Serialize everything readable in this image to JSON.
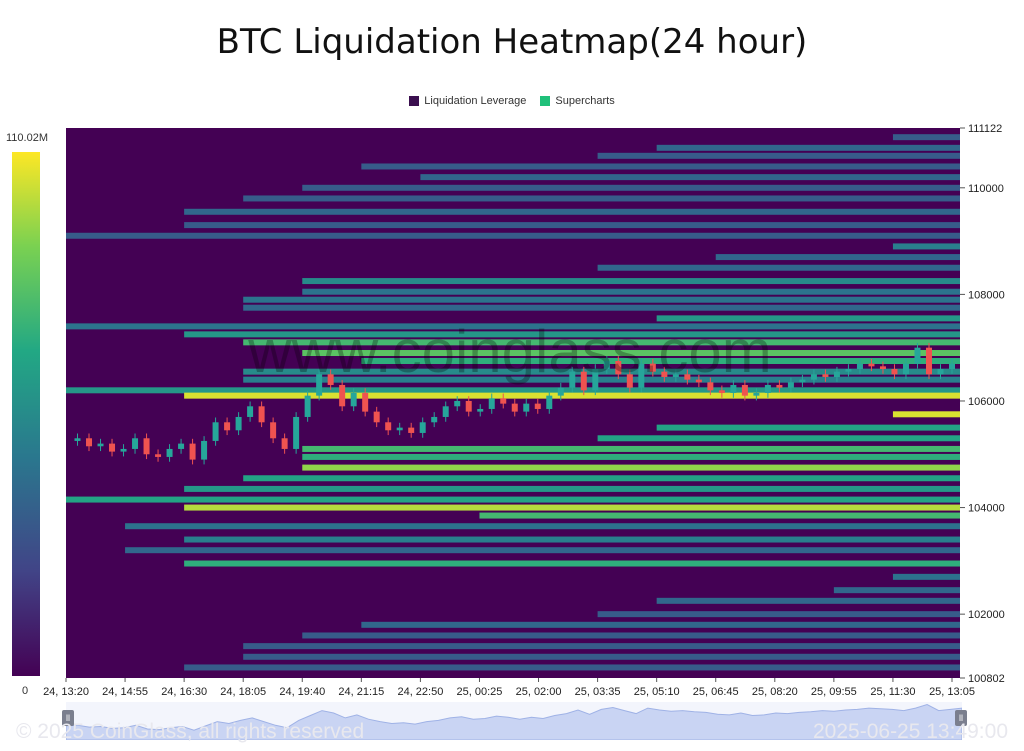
{
  "title": "BTC Liquidation Heatmap(24 hour)",
  "legend": [
    {
      "label": "Liquidation Leverage",
      "color": "#3b0f4f"
    },
    {
      "label": "Supercharts",
      "color": "#20c07a"
    }
  ],
  "colorbar": {
    "max_label": "110.02M",
    "min_label": "0"
  },
  "watermark": "www.coinglass.com",
  "footer": {
    "copyright": "© 2025 CoinGlass, all rights reserved",
    "timestamp": "2025-06-25 13:49:00"
  },
  "chart_data": {
    "type": "heatmap",
    "title": "BTC Liquidation Heatmap(24 hour)",
    "x_ticks": [
      "24, 13:20",
      "24, 14:55",
      "24, 16:30",
      "24, 18:05",
      "24, 19:40",
      "24, 21:15",
      "24, 22:50",
      "25, 00:25",
      "25, 02:00",
      "25, 03:35",
      "25, 05:10",
      "25, 06:45",
      "25, 08:20",
      "25, 09:55",
      "25, 11:30",
      "25, 13:05"
    ],
    "y_ticks": [
      111122,
      110000,
      108000,
      106000,
      104000,
      102000,
      100802
    ],
    "ylim": [
      100802,
      111122
    ],
    "colorscale": {
      "min": 0,
      "max_label": "110.02M"
    },
    "liquidation_bands": [
      {
        "price": 110950,
        "start": 14,
        "level": 0.3
      },
      {
        "price": 110750,
        "start": 10,
        "level": 0.35
      },
      {
        "price": 110600,
        "start": 9,
        "level": 0.3
      },
      {
        "price": 110400,
        "start": 5,
        "level": 0.3
      },
      {
        "price": 110200,
        "start": 6,
        "level": 0.35
      },
      {
        "price": 110000,
        "start": 4,
        "level": 0.3
      },
      {
        "price": 109800,
        "start": 3,
        "level": 0.3
      },
      {
        "price": 109550,
        "start": 2,
        "level": 0.35
      },
      {
        "price": 109300,
        "start": 2,
        "level": 0.3
      },
      {
        "price": 109100,
        "start": 0,
        "level": 0.3
      },
      {
        "price": 108900,
        "start": 14,
        "level": 0.45
      },
      {
        "price": 108700,
        "start": 11,
        "level": 0.35
      },
      {
        "price": 108500,
        "start": 9,
        "level": 0.35
      },
      {
        "price": 108250,
        "start": 4,
        "level": 0.5
      },
      {
        "price": 108050,
        "start": 4,
        "level": 0.4
      },
      {
        "price": 107900,
        "start": 3,
        "level": 0.4
      },
      {
        "price": 107750,
        "start": 3,
        "level": 0.35
      },
      {
        "price": 107550,
        "start": 10,
        "level": 0.55
      },
      {
        "price": 107400,
        "start": 0,
        "level": 0.4
      },
      {
        "price": 107250,
        "start": 2,
        "level": 0.55
      },
      {
        "price": 107100,
        "start": 3,
        "level": 0.7
      },
      {
        "price": 106900,
        "start": 4,
        "level": 0.75
      },
      {
        "price": 106750,
        "start": 5,
        "level": 0.65
      },
      {
        "price": 106550,
        "start": 3,
        "level": 0.5
      },
      {
        "price": 106400,
        "start": 3,
        "level": 0.45
      },
      {
        "price": 106200,
        "start": 0,
        "level": 0.55
      },
      {
        "price": 106100,
        "start": 2,
        "level": 0.95
      },
      {
        "price": 105750,
        "start": 14,
        "level": 0.95
      },
      {
        "price": 105500,
        "start": 10,
        "level": 0.6
      },
      {
        "price": 105300,
        "start": 9,
        "level": 0.6
      },
      {
        "price": 105100,
        "start": 4,
        "level": 0.7
      },
      {
        "price": 104950,
        "start": 4,
        "level": 0.65
      },
      {
        "price": 104750,
        "start": 4,
        "level": 0.85
      },
      {
        "price": 104550,
        "start": 3,
        "level": 0.6
      },
      {
        "price": 104350,
        "start": 2,
        "level": 0.55
      },
      {
        "price": 104150,
        "start": 0,
        "level": 0.6
      },
      {
        "price": 104000,
        "start": 2,
        "level": 0.9
      },
      {
        "price": 103850,
        "start": 7,
        "level": 0.7
      },
      {
        "price": 103650,
        "start": 1,
        "level": 0.4
      },
      {
        "price": 103400,
        "start": 2,
        "level": 0.45
      },
      {
        "price": 103200,
        "start": 1,
        "level": 0.35
      },
      {
        "price": 102950,
        "start": 2,
        "level": 0.65
      },
      {
        "price": 102700,
        "start": 14,
        "level": 0.4
      },
      {
        "price": 102450,
        "start": 13,
        "level": 0.35
      },
      {
        "price": 102250,
        "start": 10,
        "level": 0.35
      },
      {
        "price": 102000,
        "start": 9,
        "level": 0.3
      },
      {
        "price": 101800,
        "start": 5,
        "level": 0.35
      },
      {
        "price": 101600,
        "start": 4,
        "level": 0.3
      },
      {
        "price": 101400,
        "start": 3,
        "level": 0.3
      },
      {
        "price": 101200,
        "start": 3,
        "level": 0.3
      },
      {
        "price": 101000,
        "start": 2,
        "level": 0.3
      }
    ],
    "price_series": [
      105250,
      105300,
      105150,
      105200,
      105050,
      105100,
      105300,
      105000,
      104950,
      105100,
      105200,
      104900,
      105250,
      105600,
      105450,
      105700,
      105900,
      105600,
      105300,
      105100,
      105700,
      106100,
      106500,
      106300,
      105900,
      106150,
      105800,
      105600,
      105450,
      105500,
      105400,
      105600,
      105700,
      105900,
      106000,
      105800,
      105850,
      106050,
      105950,
      105800,
      105950,
      105850,
      106100,
      106250,
      106550,
      106200,
      106600,
      106750,
      106500,
      106250,
      106700,
      106550,
      106450,
      106500,
      106400,
      106350,
      106200,
      106150,
      106300,
      106100,
      106150,
      106300,
      106250,
      106350,
      106400,
      106500,
      106450,
      106550,
      106600,
      106700,
      106650,
      106600,
      106500,
      106700,
      107000,
      106500,
      106600,
      106700
    ]
  }
}
